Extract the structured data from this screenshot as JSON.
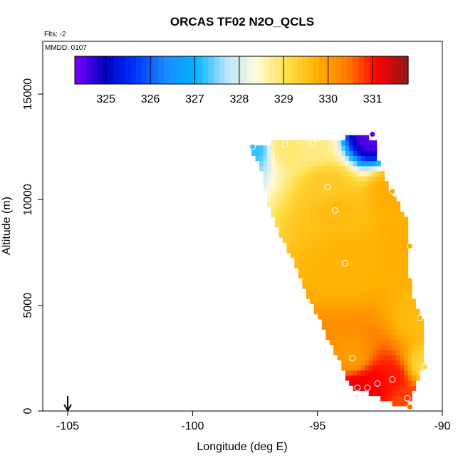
{
  "chart_data": {
    "type": "heatmap",
    "title": "ORCAS TF02 N2O_QCLS",
    "subtitle_flights": "Flts: -2",
    "subtitle_date": "MMDD: 0107",
    "xlabel": "Longitude (deg E)",
    "ylabel": "Altitude (m)",
    "xlim": [
      -106,
      -90
    ],
    "ylim": [
      0,
      17500
    ],
    "x_ticks": [
      -105,
      -100,
      -95,
      -90
    ],
    "x_tick_labels": [
      "-105",
      "-100",
      "-95",
      "-90"
    ],
    "y_ticks": [
      0,
      5000,
      10000,
      15000
    ],
    "y_tick_labels": [
      "0",
      "5000",
      "10000",
      "15000"
    ],
    "colorbar": {
      "range": [
        324.3,
        331.8
      ],
      "ticks": [
        325,
        326,
        327,
        328,
        329,
        330,
        331
      ],
      "tick_labels": [
        "325",
        "326",
        "327",
        "328",
        "329",
        "330",
        "331"
      ],
      "colors": [
        "#7a00ff",
        "#0000c0",
        "#0033ff",
        "#1a8cff",
        "#00b4ff",
        "#b8e4ff",
        "#fffbd8",
        "#ffe04a",
        "#ffb000",
        "#ff7a00",
        "#ff0000",
        "#8b1a1a"
      ]
    },
    "field_polygon": [
      [
        -97.7,
        12500
      ],
      [
        -96.4,
        12800
      ],
      [
        -94.0,
        12900
      ],
      [
        -93.0,
        13100
      ],
      [
        -92.7,
        12700
      ],
      [
        -92.5,
        11500
      ],
      [
        -92.0,
        10300
      ],
      [
        -91.4,
        9000
      ],
      [
        -91.3,
        6200
      ],
      [
        -91.1,
        5000
      ],
      [
        -90.8,
        4300
      ],
      [
        -90.8,
        3000
      ],
      [
        -90.8,
        2000
      ],
      [
        -91.0,
        1500
      ],
      [
        -91.3,
        600
      ],
      [
        -91.5,
        100
      ],
      [
        -93.0,
        900
      ],
      [
        -93.6,
        1100
      ],
      [
        -94.0,
        2000
      ],
      [
        -94.6,
        3500
      ],
      [
        -95.3,
        5200
      ],
      [
        -95.9,
        7000
      ],
      [
        -96.6,
        8500
      ],
      [
        -97.0,
        10000
      ],
      [
        -97.3,
        11500
      ]
    ],
    "flight_points": [
      {
        "lon": -92.8,
        "alt": 13100,
        "value": 324.5
      },
      {
        "lon": -95.2,
        "alt": 12700,
        "value": 328.8
      },
      {
        "lon": -96.3,
        "alt": 12600,
        "value": 328.9
      },
      {
        "lon": -97.6,
        "alt": 12500,
        "value": 327.2
      },
      {
        "lon": -94.6,
        "alt": 10600,
        "value": 329.4
      },
      {
        "lon": -94.3,
        "alt": 9500,
        "value": 329.6
      },
      {
        "lon": -92.0,
        "alt": 10400,
        "value": 329.8
      },
      {
        "lon": -91.3,
        "alt": 7800,
        "value": 329.8
      },
      {
        "lon": -93.9,
        "alt": 7000,
        "value": 329.7
      },
      {
        "lon": -90.9,
        "alt": 4400,
        "value": 329.6
      },
      {
        "lon": -90.7,
        "alt": 2100,
        "value": 329.2
      },
      {
        "lon": -93.6,
        "alt": 2500,
        "value": 330.0
      },
      {
        "lon": -92.0,
        "alt": 1500,
        "value": 331.0
      },
      {
        "lon": -92.6,
        "alt": 1300,
        "value": 331.1
      },
      {
        "lon": -93.0,
        "alt": 1100,
        "value": 331.2
      },
      {
        "lon": -93.4,
        "alt": 1100,
        "value": 331.3
      },
      {
        "lon": -91.4,
        "alt": 600,
        "value": 330.8
      },
      {
        "lon": -91.3,
        "alt": 200,
        "value": 330.5
      }
    ],
    "base_marker_lon": -105.0
  }
}
